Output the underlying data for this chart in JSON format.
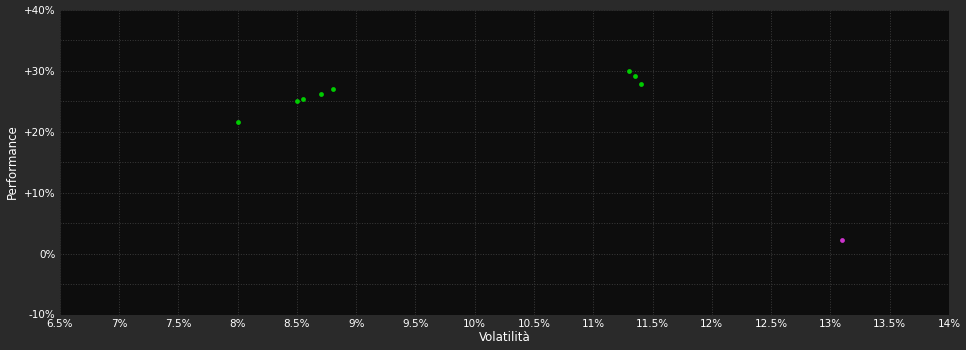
{
  "background_color": "#2a2a2a",
  "plot_bg_color": "#0d0d0d",
  "grid_color": "#3a3a3a",
  "xlabel": "Volatilità",
  "ylabel": "Performance",
  "xlim": [
    0.065,
    0.14
  ],
  "ylim": [
    -0.1,
    0.4
  ],
  "xticks": [
    0.065,
    0.07,
    0.075,
    0.08,
    0.085,
    0.09,
    0.095,
    0.1,
    0.105,
    0.11,
    0.115,
    0.12,
    0.125,
    0.13,
    0.135,
    0.14
  ],
  "yticks": [
    -0.1,
    -0.05,
    0.0,
    0.05,
    0.1,
    0.15,
    0.2,
    0.25,
    0.3,
    0.35,
    0.4
  ],
  "ytick_labels": [
    "-10%",
    "",
    "0%",
    "",
    "+10%",
    "",
    "+20%",
    "",
    "+30%",
    "",
    "+40%"
  ],
  "green_points": [
    [
      0.08,
      0.215
    ],
    [
      0.085,
      0.25
    ],
    [
      0.0855,
      0.254
    ],
    [
      0.087,
      0.261
    ],
    [
      0.088,
      0.27
    ],
    [
      0.113,
      0.3
    ],
    [
      0.1135,
      0.291
    ],
    [
      0.114,
      0.278
    ]
  ],
  "magenta_points": [
    [
      0.131,
      0.022
    ]
  ],
  "green_color": "#00cc00",
  "magenta_color": "#cc33cc",
  "point_size": 12,
  "axis_label_color": "#ffffff",
  "tick_label_color": "#ffffff",
  "tick_label_size": 7.5,
  "axis_label_size": 8.5
}
